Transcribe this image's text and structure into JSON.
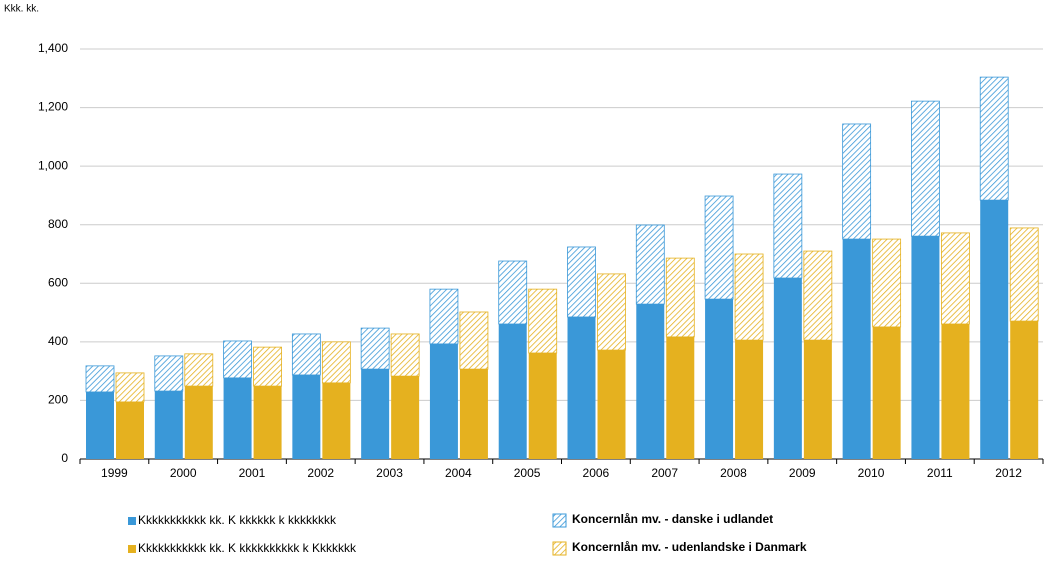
{
  "chart_data": {
    "type": "stacked-bar",
    "unit_label": "Kkk. kk.",
    "categories": [
      "1999",
      "2000",
      "2001",
      "2002",
      "2003",
      "2004",
      "2005",
      "2006",
      "2007",
      "2008",
      "2009",
      "2010",
      "2011",
      "2012"
    ],
    "series": [
      {
        "name": "Kkkkkkkkkkk kk. K kkkkkk k kkkkkkkk",
        "color": "#3a98d8",
        "stack": 0,
        "hatched": false,
        "values": [
          229,
          232,
          277,
          287,
          307,
          393,
          461,
          485,
          529,
          546,
          618,
          751,
          761,
          884
        ]
      },
      {
        "name": "Kkkkkkkkkkk kk. K kkkkkkkkkk k Kkkkkkk",
        "color": "#e5b11f",
        "stack": 1,
        "hatched": false,
        "values": [
          195,
          249,
          249,
          260,
          283,
          307,
          362,
          372,
          417,
          406,
          406,
          451,
          461,
          471
        ]
      },
      {
        "name": "Koncernlån mv. - danske i udlandet",
        "color": "#3a98d8",
        "stack": 0,
        "hatched": true,
        "values": [
          89,
          120,
          126,
          140,
          140,
          187,
          215,
          239,
          270,
          352,
          355,
          393,
          461,
          420
        ]
      },
      {
        "name": "Koncernlån mv. - udenlandske i Danmark",
        "color": "#e5b11f",
        "stack": 1,
        "hatched": true,
        "values": [
          99,
          110,
          133,
          140,
          144,
          195,
          218,
          260,
          269,
          294,
          304,
          300,
          311,
          318
        ]
      }
    ],
    "ylim": [
      0,
      1400
    ],
    "yticks": [
      0,
      200,
      400,
      600,
      800,
      {
        "value": 1000,
        "label": "1,000"
      },
      {
        "value": 1200,
        "label": "1,200"
      },
      {
        "value": 1400,
        "label": "1,400"
      }
    ],
    "grid": true
  }
}
